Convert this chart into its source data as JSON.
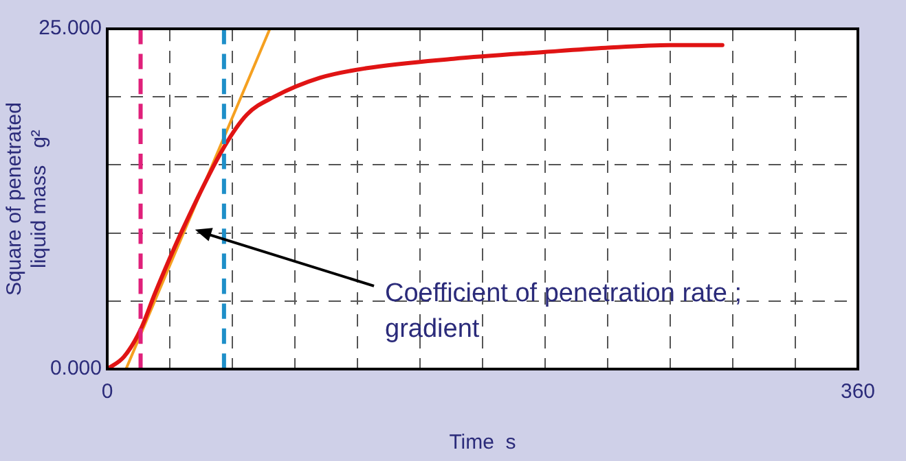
{
  "chart_data": {
    "type": "line",
    "xlabel": "Time  s",
    "ylabel": "Square of penetrated\nliquid mass   g²",
    "xlim": [
      0,
      360
    ],
    "ylim": [
      0,
      25
    ],
    "xticks": [
      0,
      {
        "value": 30,
        "label": null
      },
      {
        "value": 60,
        "label": null
      },
      {
        "value": 90,
        "label": null
      },
      {
        "value": 120,
        "label": null
      },
      {
        "value": 150,
        "label": null
      },
      {
        "value": 180,
        "label": null
      },
      {
        "value": 210,
        "label": null
      },
      {
        "value": 240,
        "label": null
      },
      {
        "value": 270,
        "label": null
      },
      {
        "value": 300,
        "label": null
      },
      {
        "value": 330,
        "label": null
      },
      360
    ],
    "yticks": [
      {
        "value": 0,
        "label": "0.000"
      },
      {
        "value": 5,
        "label": null
      },
      {
        "value": 10,
        "label": null
      },
      {
        "value": 15,
        "label": null
      },
      {
        "value": 20,
        "label": null
      },
      {
        "value": 25,
        "label": "25.000"
      }
    ],
    "grid": true,
    "legend": false,
    "marker": "none",
    "line_style": "solid",
    "series": [
      {
        "color": "#e01414",
        "x": [
          0,
          8,
          16,
          23,
          36,
          56,
          67,
          80,
          102,
          124,
          166,
          210,
          239,
          270,
          295
        ],
        "values": [
          0,
          0.9,
          2.9,
          5.6,
          10.2,
          16.3,
          18.7,
          20,
          21.4,
          22.1,
          22.8,
          23.3,
          23.6,
          23.8,
          23.8
        ]
      },
      {
        "color": "#f5a020",
        "x": [
          9,
          78
        ],
        "values": [
          0,
          25
        ]
      }
    ],
    "ref_lines": [
      {
        "axis": "x",
        "value": 16,
        "color": "#e0207a",
        "line_style": "dashed"
      },
      {
        "axis": "x",
        "value": 56,
        "color": "#1e8fc8",
        "line_style": "dashed"
      }
    ],
    "annotations": [
      "Coefficient of penetration rate ;\ngradient"
    ]
  }
}
